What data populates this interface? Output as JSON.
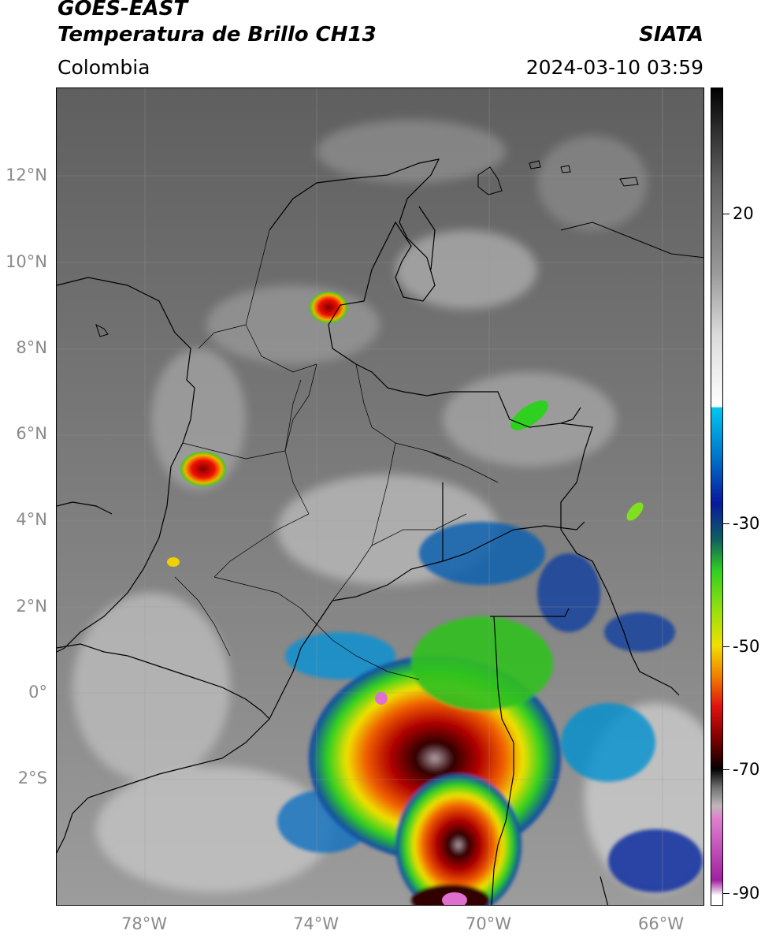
{
  "header": {
    "satellite": "GOES-EAST",
    "product": "Temperatura de Brillo CH13",
    "brand": "SIATA",
    "region": "Colombia",
    "datetime": "2024-03-10 03:59"
  },
  "axes": {
    "lat_labels": [
      "12°N",
      "10°N",
      "8°N",
      "6°N",
      "4°N",
      "2°N",
      "0°",
      "2°S"
    ],
    "lon_labels": [
      "78°W",
      "74°W",
      "70°W",
      "66°W"
    ]
  },
  "colorbar": {
    "tick_labels": [
      "20",
      "-30",
      "-50",
      "-70",
      "-90"
    ],
    "tick_values": [
      20,
      -30,
      -50,
      -70,
      -90
    ],
    "range": [
      -92,
      40
    ]
  },
  "colors": {
    "background_gray": "#6e6e6e",
    "cloud_light": "#e8e8e8",
    "cold_cyan": "#00b0e0",
    "cold_blue": "#1030a0",
    "cold_green": "#30d020",
    "cold_yellow": "#f0e000",
    "cold_red": "#e01010",
    "cold_dark": "#400000",
    "coldest_pink": "#e070d0"
  }
}
